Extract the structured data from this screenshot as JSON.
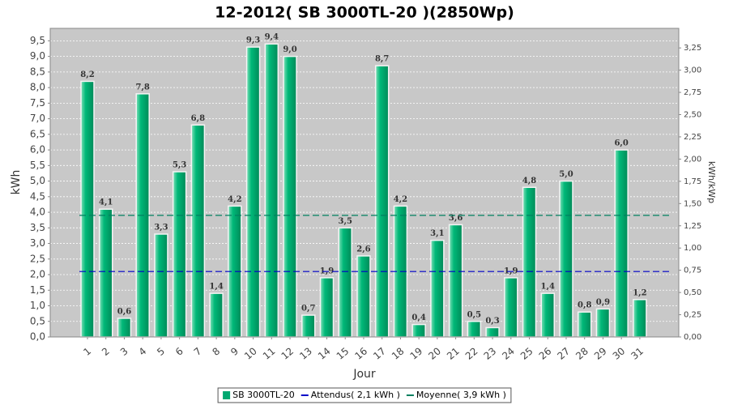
{
  "chart_data": {
    "type": "bar",
    "title": "12-2012( SB 3000TL-20 )(2850Wp)",
    "x_label": "Jour",
    "y_label": "kWh",
    "y2_label": "kWh/kWp",
    "categories": [
      "1",
      "2",
      "3",
      "4",
      "5",
      "6",
      "7",
      "8",
      "9",
      "10",
      "11",
      "12",
      "13",
      "14",
      "15",
      "16",
      "17",
      "18",
      "19",
      "20",
      "21",
      "22",
      "23",
      "24",
      "25",
      "26",
      "27",
      "28",
      "29",
      "30",
      "31"
    ],
    "series": [
      {
        "name": "SB 3000TL-20",
        "color": "#00a870",
        "values": [
          8.2,
          4.1,
          0.6,
          7.8,
          3.3,
          5.3,
          6.8,
          1.4,
          4.2,
          9.3,
          9.4,
          9.0,
          0.7,
          1.9,
          3.5,
          2.6,
          8.7,
          4.2,
          0.4,
          3.1,
          3.6,
          0.5,
          0.3,
          1.9,
          4.8,
          1.4,
          5.0,
          0.8,
          0.9,
          6.0,
          1.2
        ],
        "value_labels": [
          "8,2",
          "4,1",
          "0,6",
          "7,8",
          "3,3",
          "5,3",
          "6,8",
          "1,4",
          "4,2",
          "9,3",
          "9,4",
          "9,0",
          "0,7",
          "1,9",
          "3,5",
          "2,6",
          "8,7",
          "4,2",
          "0,4",
          "3,1",
          "3,6",
          "0,5",
          "0,3",
          "1,9",
          "4,8",
          "1,4",
          "5,0",
          "0,8",
          "0,9",
          "6,0",
          "1,2"
        ]
      }
    ],
    "reference_lines": [
      {
        "name": "Attendus( 2,1 kWh )",
        "value": 2.1,
        "color": "#0000c8"
      },
      {
        "name": "Moyenne( 3,9 kWh )",
        "value": 3.9,
        "color": "#008060"
      }
    ],
    "ylim": [
      0,
      9.9
    ],
    "yticks": [
      {
        "value": 0,
        "label": "0,0"
      },
      {
        "value": 0.5,
        "label": "0,5"
      },
      {
        "value": 1,
        "label": "1,0"
      },
      {
        "value": 1.5,
        "label": "1,5"
      },
      {
        "value": 2,
        "label": "2,0"
      },
      {
        "value": 2.5,
        "label": "2,5"
      },
      {
        "value": 3,
        "label": "3,0"
      },
      {
        "value": 3.5,
        "label": "3,5"
      },
      {
        "value": 4,
        "label": "4,0"
      },
      {
        "value": 4.5,
        "label": "4,5"
      },
      {
        "value": 5,
        "label": "5,0"
      },
      {
        "value": 5.5,
        "label": "5,5"
      },
      {
        "value": 6,
        "label": "6,0"
      },
      {
        "value": 6.5,
        "label": "6,5"
      },
      {
        "value": 7,
        "label": "7,0"
      },
      {
        "value": 7.5,
        "label": "7,5"
      },
      {
        "value": 8,
        "label": "8,0"
      },
      {
        "value": 8.5,
        "label": "8,5"
      },
      {
        "value": 9,
        "label": "9,0"
      },
      {
        "value": 9.5,
        "label": "9,5"
      }
    ],
    "y2lim": [
      0,
      3.47
    ],
    "y2ticks": [
      {
        "value": 0,
        "label": "0,00"
      },
      {
        "value": 0.25,
        "label": "0,25"
      },
      {
        "value": 0.5,
        "label": "0,50"
      },
      {
        "value": 0.75,
        "label": "0,75"
      },
      {
        "value": 1,
        "label": "1,00"
      },
      {
        "value": 1.25,
        "label": "1,25"
      },
      {
        "value": 1.5,
        "label": "1,50"
      },
      {
        "value": 1.75,
        "label": "1,75"
      },
      {
        "value": 2,
        "label": "2,00"
      },
      {
        "value": 2.25,
        "label": "2,25"
      },
      {
        "value": 2.5,
        "label": "2,50"
      },
      {
        "value": 2.75,
        "label": "2,75"
      },
      {
        "value": 3,
        "label": "3,00"
      },
      {
        "value": 3.25,
        "label": "3,25"
      }
    ],
    "grid": true,
    "legend": "bottom"
  }
}
